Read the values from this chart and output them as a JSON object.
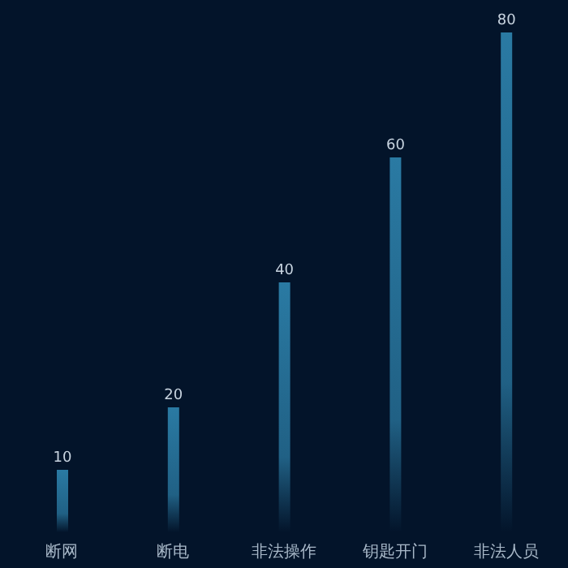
{
  "chart_data": {
    "type": "bar",
    "categories": [
      "断网",
      "断电",
      "非法操作",
      "钥匙开门",
      "非法人员"
    ],
    "values": [
      10,
      20,
      40,
      60,
      80
    ],
    "color": "#2a7aa3",
    "data_labels": true
  }
}
